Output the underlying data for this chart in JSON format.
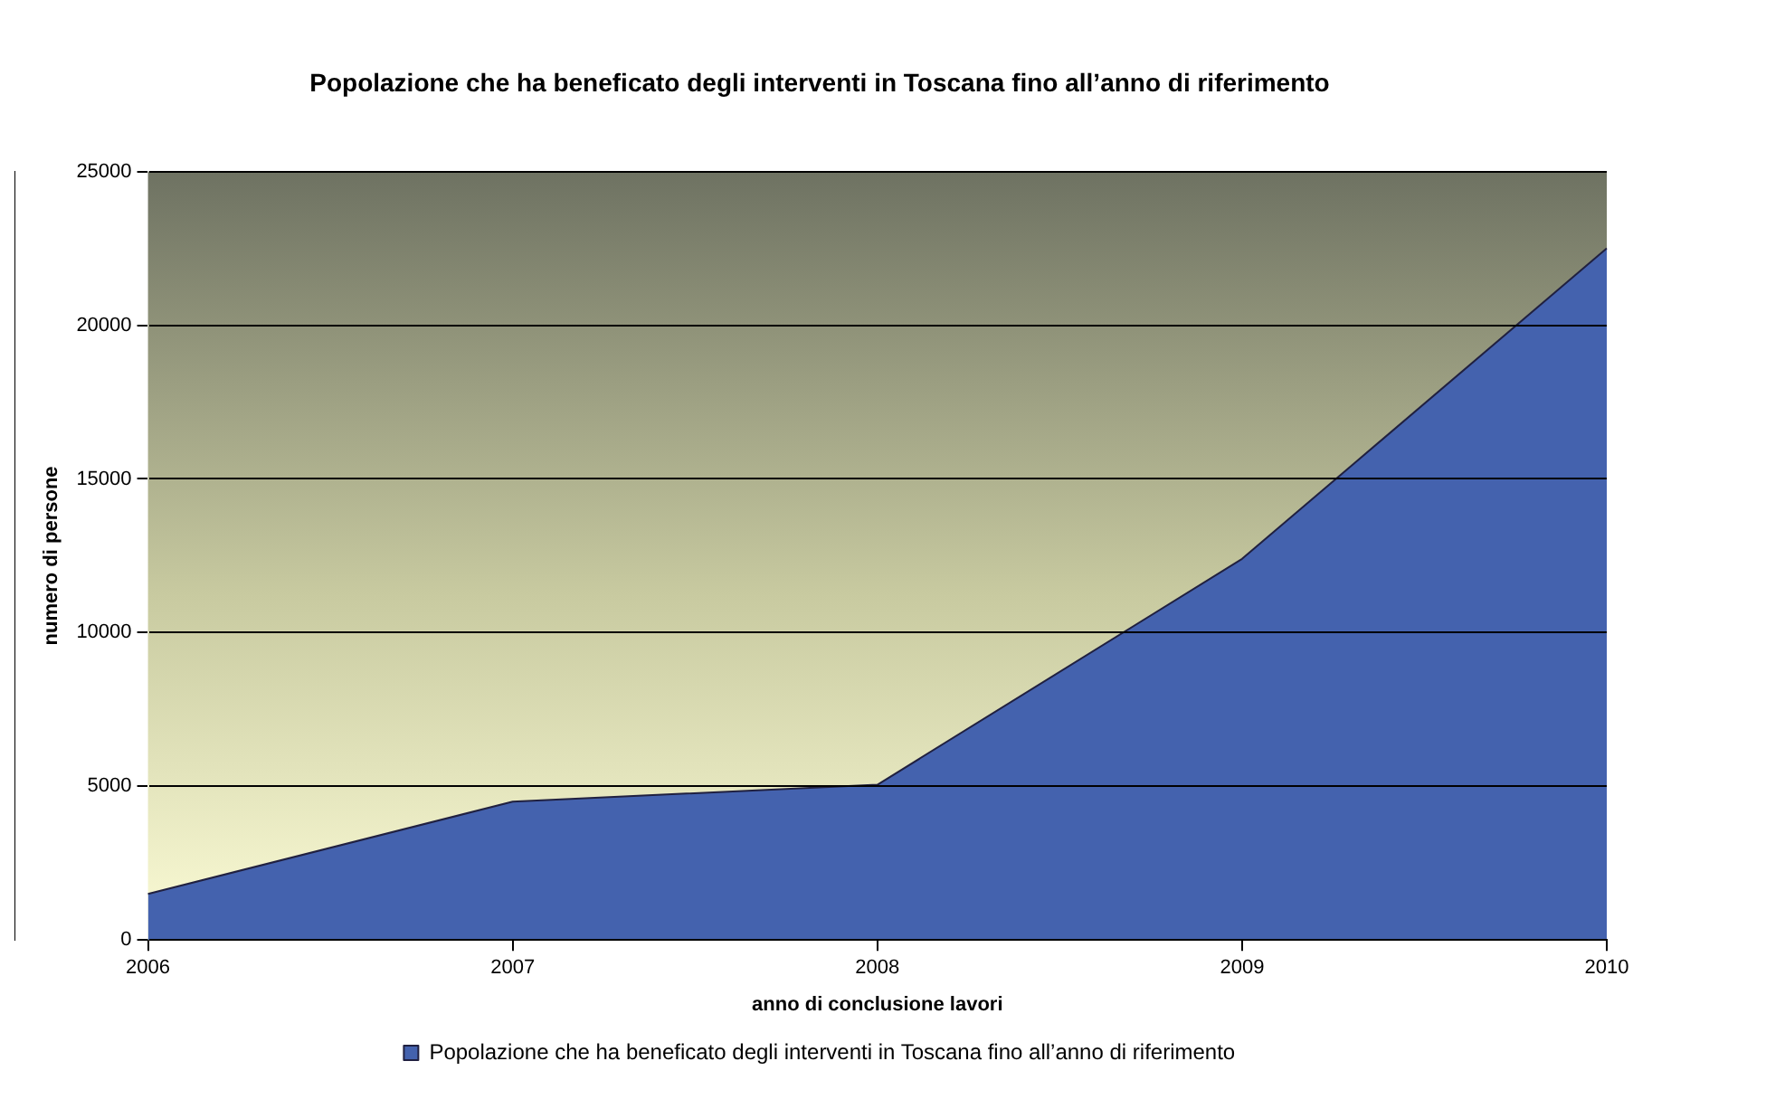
{
  "chart_data": {
    "type": "area",
    "title": "Popolazione che ha beneficato degli interventi in Toscana fino all’anno di riferimento",
    "xlabel": "anno di conclusione lavori",
    "ylabel": "numero di persone",
    "categories": [
      "2006",
      "2007",
      "2008",
      "2009",
      "2010"
    ],
    "series": [
      {
        "name": "Popolazione che ha beneficato degli interventi in Toscana fino all’anno di riferimento",
        "color": "#4462ae",
        "values": [
          1500,
          4500,
          5050,
          12400,
          22500
        ]
      }
    ],
    "ylim": [
      0,
      25000
    ],
    "yticks": [
      0,
      5000,
      10000,
      15000,
      20000,
      25000
    ],
    "grid": "y",
    "legend": "bottom"
  }
}
